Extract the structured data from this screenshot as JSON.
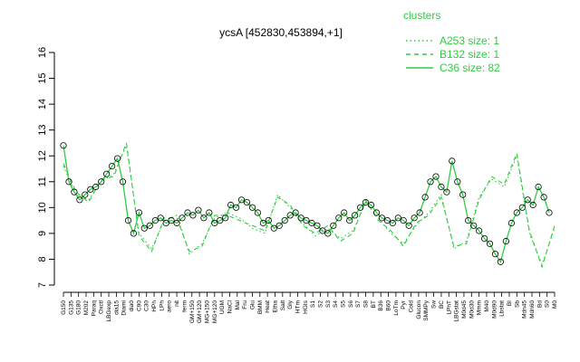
{
  "chart_data": {
    "type": "line",
    "title": "ycsA [452830,453894,+1]",
    "ylim": [
      7,
      16
    ],
    "yticks": [
      7,
      8,
      9,
      10,
      11,
      12,
      13,
      14,
      15,
      16
    ],
    "grid": false,
    "legend_position": "top-right",
    "legend": {
      "title": "clusters",
      "entries": [
        {
          "label": "A253 size: 1",
          "style": "dotted"
        },
        {
          "label": "B132 size: 1",
          "style": "dashed"
        },
        {
          "label": "C36 size: 82",
          "style": "solid"
        }
      ]
    },
    "color": "#2ecc40",
    "x_labels": [
      "G150",
      "G135",
      "G180",
      "M202",
      "Paraq",
      "Oxctl",
      "LBGexp",
      "dia15",
      "Diami",
      "dia0",
      "C90",
      "C30",
      "HPh",
      "LPh",
      "aero",
      "nit",
      "ferm",
      "GM+150",
      "GM+120",
      "MG+150",
      "MG+120",
      "UGM",
      "NaCl",
      "Mal",
      "Fru",
      "Glu",
      "BMM",
      "Heat",
      "Etha",
      "Salt",
      "Gly",
      "HTm",
      "HGIs",
      "S1",
      "S2",
      "S3",
      "S4",
      "S5",
      "S6",
      "S7",
      "S8",
      "BT",
      "B36",
      "B60",
      "LoTm",
      "Pyr",
      "Cold",
      "Glucon",
      "SMMPy",
      "Sw",
      "BC",
      "LPhT",
      "LBGstat",
      "M0d45",
      "M0d30",
      "Mmm",
      "M40",
      "M0d90",
      "Lbstat",
      "BI",
      "Sb",
      "Mdn45",
      "Mdn60",
      "Bd",
      "S0",
      "M0"
    ],
    "series": [
      {
        "name": "A253 size: 1",
        "x": [
          0,
          14,
          28,
          42,
          56,
          70,
          84,
          98,
          112,
          126,
          140,
          154,
          168,
          182,
          196,
          210,
          224,
          238,
          252,
          266,
          280,
          294,
          308,
          322,
          336,
          350,
          364,
          378,
          392,
          406,
          420,
          434,
          448,
          462,
          476,
          490,
          504,
          518,
          532,
          546
        ],
        "values": [
          11.6,
          10.5,
          10.3,
          11.0,
          11.3,
          12.4,
          9.0,
          8.4,
          9.5,
          9.7,
          8.2,
          8.6,
          9.6,
          9.8,
          9.6,
          9.2,
          9.0,
          10.5,
          10.0,
          9.4,
          8.9,
          9.2,
          8.8,
          9.1,
          10.2,
          9.6,
          9.0,
          8.6,
          9.3,
          9.8,
          10.5,
          8.4,
          8.7,
          10.4,
          11.1,
          10.8,
          12.0,
          9.0,
          7.8,
          9.2
        ]
      },
      {
        "name": "B132 size: 1",
        "x": [
          0,
          14,
          28,
          42,
          56,
          70,
          84,
          98,
          112,
          126,
          140,
          154,
          168,
          182,
          196,
          210,
          224,
          238,
          252,
          266,
          280,
          294,
          308,
          322,
          336,
          350,
          364,
          378,
          392,
          406,
          420,
          434,
          448,
          462,
          476,
          490,
          504,
          518,
          532,
          546
        ],
        "values": [
          11.7,
          10.6,
          10.2,
          11.1,
          11.2,
          12.5,
          8.9,
          8.3,
          9.6,
          9.6,
          8.3,
          8.5,
          9.7,
          9.7,
          9.5,
          9.3,
          9.1,
          10.4,
          10.1,
          9.3,
          9.0,
          9.3,
          8.7,
          9.0,
          10.3,
          9.5,
          9.1,
          8.5,
          9.4,
          9.7,
          10.4,
          8.5,
          8.6,
          10.3,
          11.2,
          10.9,
          12.1,
          9.1,
          7.7,
          9.3
        ]
      },
      {
        "name": "C36 size: 82",
        "x": [
          0,
          6,
          12,
          18,
          24,
          30,
          36,
          42,
          48,
          54,
          60,
          66,
          72,
          78,
          84,
          90,
          96,
          102,
          108,
          114,
          120,
          126,
          132,
          138,
          144,
          150,
          156,
          162,
          168,
          174,
          180,
          186,
          192,
          198,
          204,
          210,
          216,
          222,
          228,
          234,
          240,
          246,
          252,
          258,
          264,
          270,
          276,
          282,
          288,
          294,
          300,
          306,
          312,
          318,
          324,
          330,
          336,
          342,
          348,
          354,
          360,
          366,
          372,
          378,
          384,
          390,
          396,
          402,
          408,
          414,
          420,
          426,
          432,
          438,
          444,
          450,
          456,
          462,
          468,
          474,
          480,
          486,
          492,
          498,
          504,
          510,
          516,
          522,
          528,
          534,
          540
        ],
        "values": [
          12.4,
          11.0,
          10.6,
          10.3,
          10.5,
          10.7,
          10.8,
          11.0,
          11.3,
          11.6,
          11.9,
          11.0,
          9.5,
          9.0,
          9.8,
          9.2,
          9.3,
          9.5,
          9.6,
          9.4,
          9.5,
          9.4,
          9.6,
          9.8,
          9.7,
          9.9,
          9.6,
          9.8,
          9.4,
          9.5,
          9.6,
          10.1,
          10.0,
          10.3,
          10.2,
          10.0,
          9.8,
          9.4,
          9.5,
          9.2,
          9.3,
          9.5,
          9.7,
          9.8,
          9.6,
          9.5,
          9.4,
          9.3,
          9.1,
          9.0,
          9.3,
          9.6,
          9.8,
          9.5,
          9.7,
          10.0,
          10.2,
          10.1,
          9.8,
          9.6,
          9.5,
          9.4,
          9.6,
          9.5,
          9.3,
          9.6,
          9.8,
          10.4,
          11.0,
          11.2,
          10.8,
          10.6,
          11.8,
          11.0,
          10.5,
          9.5,
          9.3,
          9.1,
          8.8,
          8.6,
          8.2,
          7.9,
          8.7,
          9.4,
          9.8,
          10.0,
          10.3,
          10.1,
          10.8,
          10.4,
          9.8
        ]
      }
    ]
  }
}
